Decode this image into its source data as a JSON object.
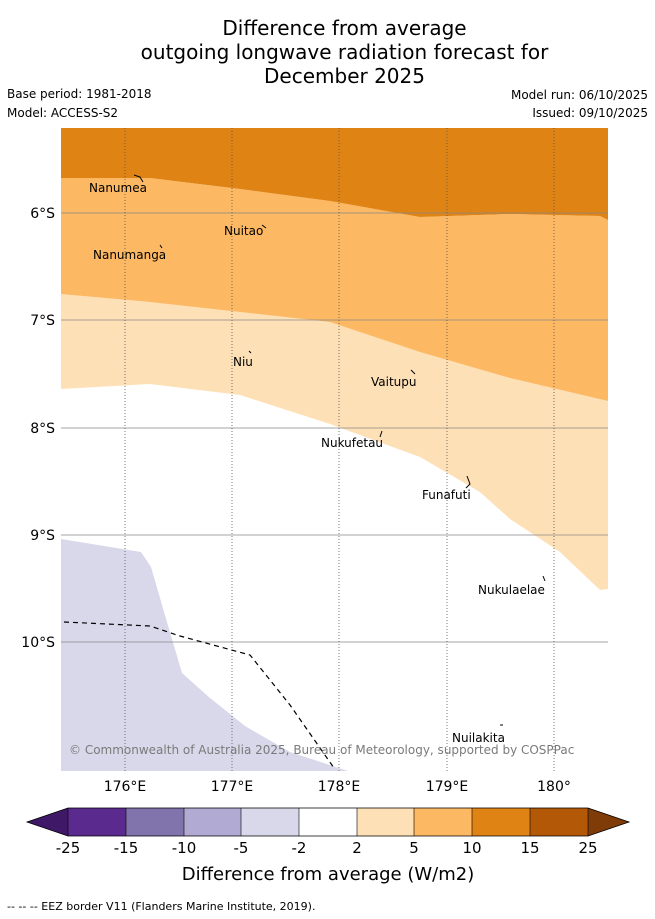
{
  "title": {
    "line1": "Difference from average",
    "line2": "outgoing longwave radiation forecast for",
    "line3": "December 2025"
  },
  "meta": {
    "base_period": "Base period: 1981-2018",
    "model": "Model: ACCESS-S2",
    "model_run": "Model run: 06/10/2025",
    "issued": "Issued: 09/10/2025"
  },
  "map": {
    "lon_labels": [
      "176°E",
      "177°E",
      "178°E",
      "179°E",
      "180°"
    ],
    "lat_labels": [
      "6°S",
      "7°S",
      "8°S",
      "9°S",
      "10°S"
    ],
    "places": [
      "Nanumea",
      "Nuitao",
      "Nanumanga",
      "Niu",
      "Vaitupu",
      "Nukufetau",
      "Funafuti",
      "Nukulaelae",
      "Nuilakita"
    ],
    "copyright": "© Commonwealth of Australia 2025, Bureau of Meteorology, supported by COSPPac"
  },
  "colorbar": {
    "ticks": [
      "-25",
      "-15",
      "-10",
      "-5",
      "-2",
      "2",
      "5",
      "10",
      "15",
      "25"
    ],
    "colors": [
      "#3f1867",
      "#5b2a8e",
      "#8174ad",
      "#b1aad2",
      "#d8d8ea",
      "#ffffff",
      "#fde0b5",
      "#fcb862",
      "#e08315",
      "#b35806",
      "#7f3b08"
    ],
    "label": "Difference from average (W/m2)"
  },
  "footer": "-- -- -- EEZ border V11 (Flanders Marine Institute, 2019)."
}
